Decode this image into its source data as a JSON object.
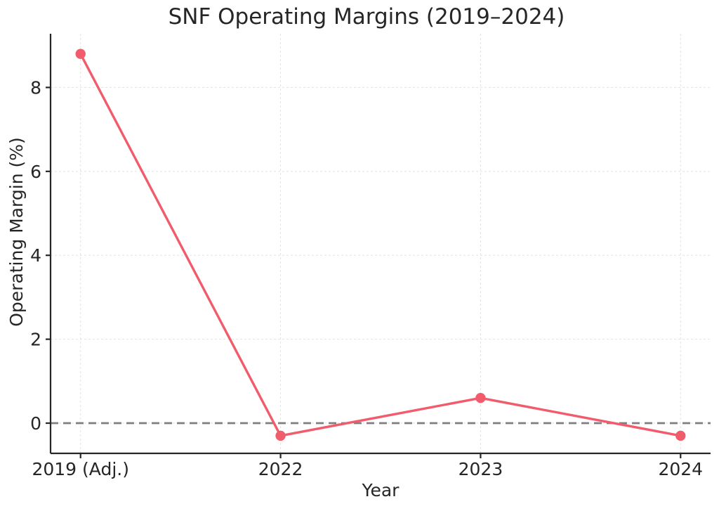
{
  "chart_data": {
    "type": "line",
    "title": "SNF Operating Margins (2019–2024)",
    "xlabel": "Year",
    "ylabel": "Operating Margin (%)",
    "categories": [
      "2019 (Adj.)",
      "2022",
      "2023",
      "2024"
    ],
    "values": [
      8.8,
      -0.3,
      0.6,
      -0.3
    ],
    "yticks": [
      0,
      2,
      4,
      6,
      8
    ],
    "ylim": [
      -0.72,
      9.28
    ],
    "grid": true,
    "legend": false,
    "reference_line": {
      "y": 0,
      "style": "dashed"
    },
    "marker": "circle",
    "colors": {
      "line": "#f25b6b",
      "marker": "#f25b6b",
      "zero_line": "#7f7f7f",
      "grid": "#e2e2e2",
      "axis": "#262626",
      "text": "#262626",
      "background": "#ffffff"
    }
  }
}
